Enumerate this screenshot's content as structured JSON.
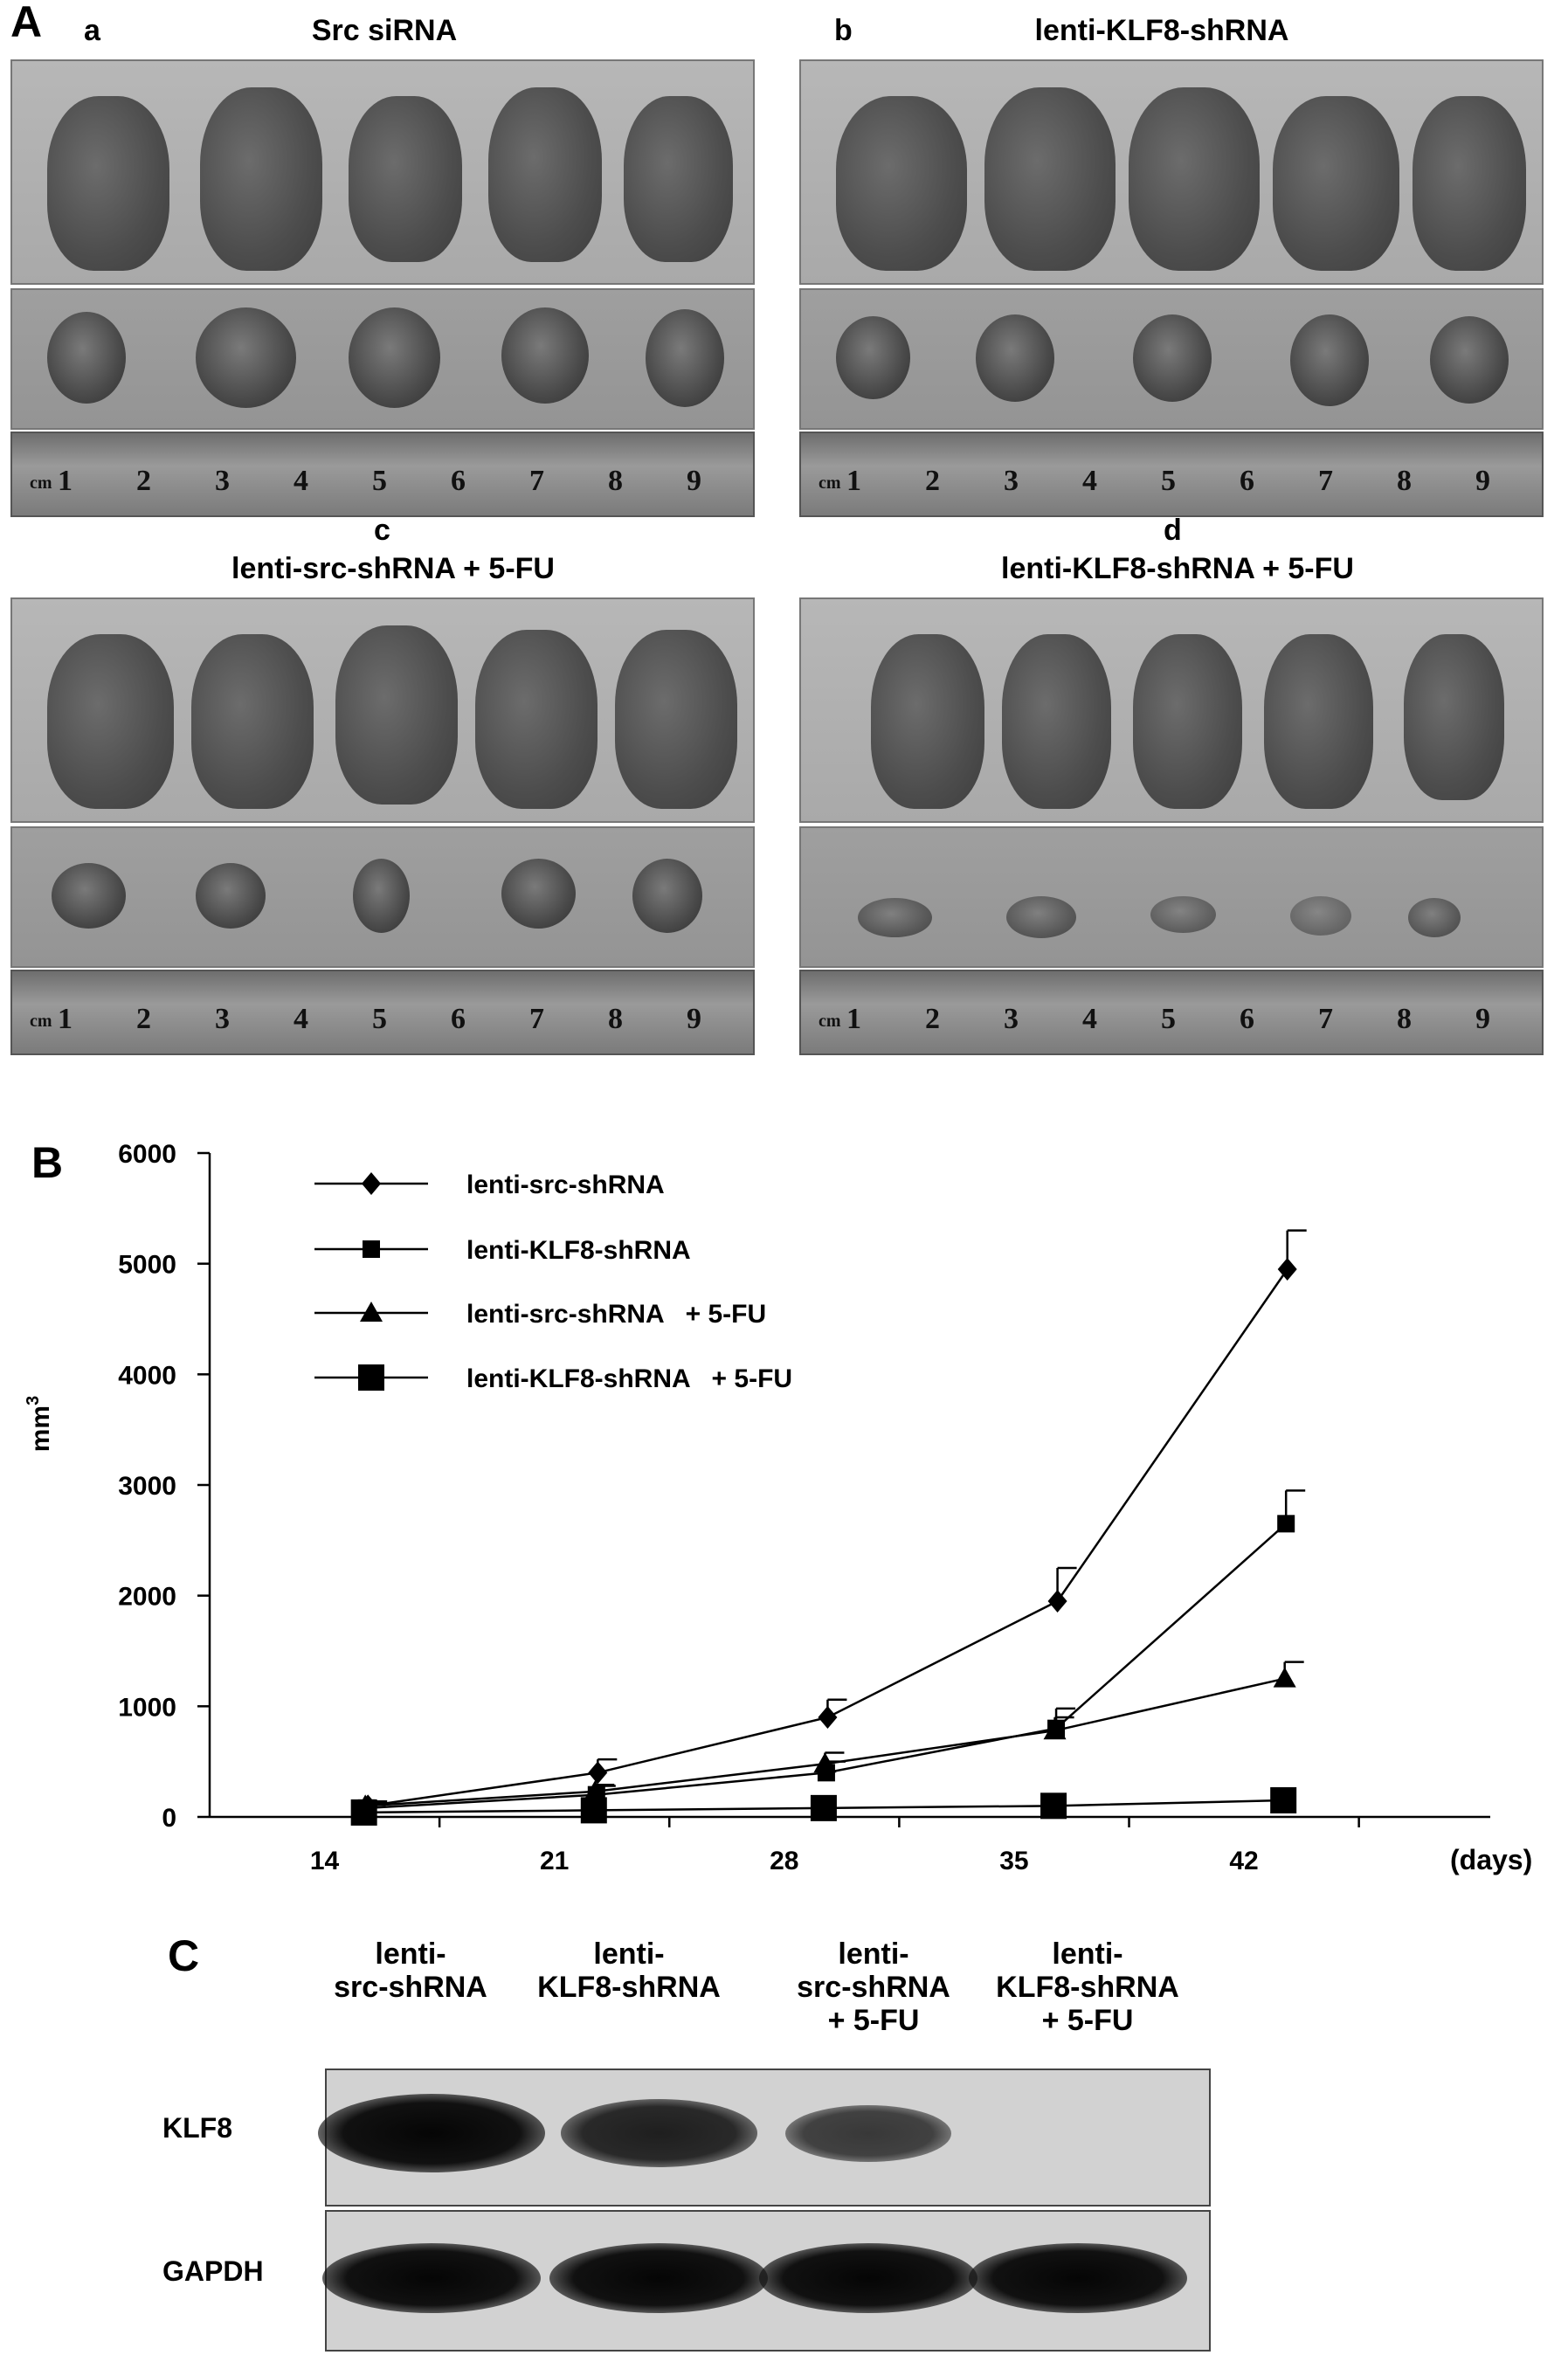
{
  "panel_a": {
    "letter": "A",
    "subpanels": [
      {
        "letter": "a",
        "title": "Src siRNA",
        "ruler": [
          "cm",
          "1",
          "2",
          "3",
          "4",
          "5",
          "6",
          "7",
          "8",
          "9"
        ]
      },
      {
        "letter": "b",
        "title": "lenti-KLF8-shRNA",
        "ruler": [
          "cm",
          "1",
          "2",
          "3",
          "4",
          "5",
          "6",
          "7",
          "8",
          "9"
        ]
      },
      {
        "letter": "c",
        "title": "lenti-src-shRNA   + 5-FU",
        "ruler": [
          "cm",
          "1",
          "2",
          "3",
          "4",
          "5",
          "6",
          "7",
          "8",
          "9"
        ]
      },
      {
        "letter": "d",
        "title": "lenti-KLF8-shRNA   + 5-FU",
        "ruler": [
          "cm",
          "1",
          "2",
          "3",
          "4",
          "5",
          "6",
          "7",
          "8",
          "9"
        ]
      }
    ]
  },
  "panel_b": {
    "letter": "B"
  },
  "chart_data": {
    "type": "line",
    "title": "",
    "xlabel": "(days)",
    "ylabel": "mm3",
    "ylabel_base": "mm",
    "ylabel_sup": "3",
    "x": [
      14,
      21,
      28,
      35,
      42
    ],
    "x_ticks": [
      "14",
      "21",
      "28",
      "35",
      "42"
    ],
    "ylim": [
      0,
      6000
    ],
    "y_ticks": [
      0,
      1000,
      2000,
      3000,
      4000,
      5000,
      6000
    ],
    "legend_position": "top-left",
    "series": [
      {
        "name": "lenti-src-shRNA",
        "marker": "diamond",
        "values": [
          100,
          400,
          900,
          1950,
          4950
        ],
        "errors": [
          40,
          120,
          160,
          300,
          350
        ]
      },
      {
        "name": "lenti-KLF8-shRNA",
        "marker": "square-small",
        "values": [
          80,
          200,
          400,
          800,
          2650
        ],
        "errors": [
          30,
          80,
          100,
          180,
          300
        ]
      },
      {
        "name": "lenti-src-shRNA   + 5-FU",
        "marker": "triangle",
        "values": [
          100,
          230,
          480,
          780,
          1250
        ],
        "errors": [
          30,
          60,
          100,
          120,
          150
        ]
      },
      {
        "name": "lenti-KLF8-shRNA   + 5-FU",
        "marker": "square-large",
        "values": [
          40,
          60,
          80,
          100,
          150
        ],
        "errors": [
          0,
          0,
          0,
          0,
          0
        ]
      }
    ]
  },
  "panel_c": {
    "letter": "C",
    "lanes": [
      [
        "lenti-",
        "src-shRNA"
      ],
      [
        "lenti-",
        "KLF8-shRNA"
      ],
      [
        "lenti-",
        "src-shRNA",
        "+ 5-FU"
      ],
      [
        "lenti-",
        "KLF8-shRNA",
        "+ 5-FU"
      ]
    ],
    "rows": [
      {
        "label": "KLF8",
        "intensity": [
          1.0,
          0.75,
          0.5,
          0.0
        ]
      },
      {
        "label": "GAPDH",
        "intensity": [
          1.0,
          1.0,
          1.0,
          1.0
        ]
      }
    ]
  }
}
